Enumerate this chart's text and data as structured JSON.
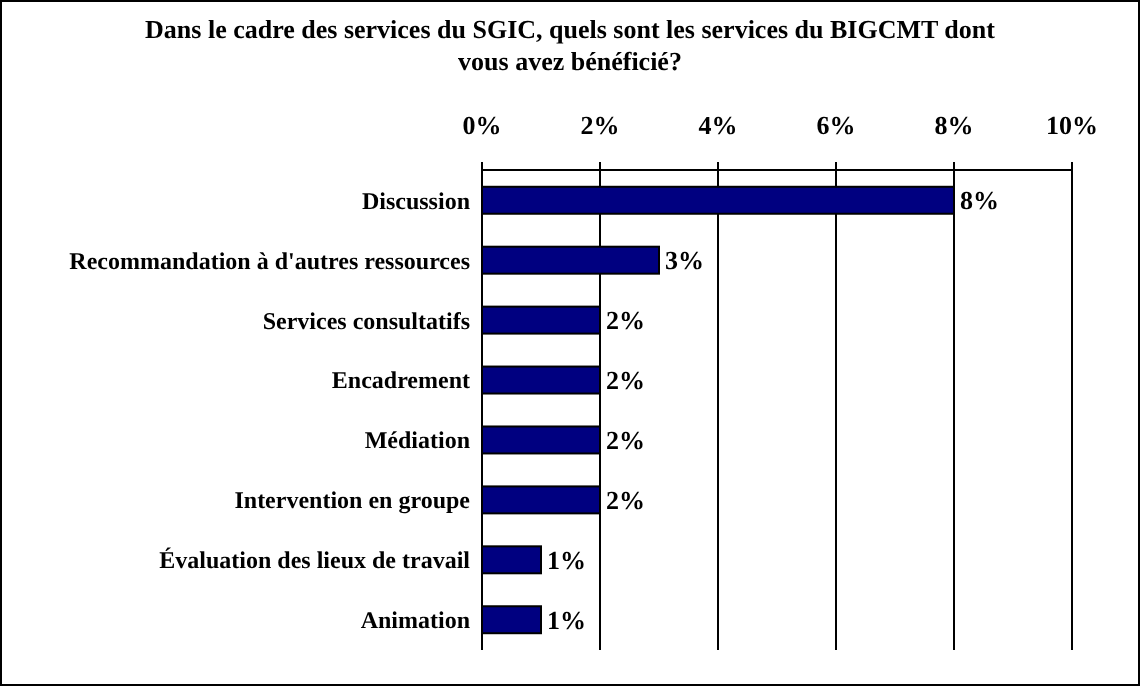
{
  "chart_data": {
    "type": "bar",
    "orientation": "horizontal",
    "title": "Dans le cadre des services du SGIC, quels sont les services du BIGCMT dont vous avez bénéficié?",
    "categories": [
      "Discussion",
      "Recommandation à d'autres ressources",
      "Services consultatifs",
      "Encadrement",
      "Médiation",
      "Intervention en groupe",
      "Évaluation des lieux de travail",
      "Animation"
    ],
    "values": [
      8,
      3,
      2,
      2,
      2,
      2,
      1,
      1
    ],
    "value_labels": [
      "8%",
      "3%",
      "2%",
      "2%",
      "2%",
      "2%",
      "1%",
      "1%"
    ],
    "color": "#000080",
    "xlim": [
      0,
      10
    ],
    "xticks": [
      {
        "value": 0,
        "label": "0%"
      },
      {
        "value": 2,
        "label": "2%"
      },
      {
        "value": 4,
        "label": "4%"
      },
      {
        "value": 6,
        "label": "6%"
      },
      {
        "value": 8,
        "label": "8%"
      },
      {
        "value": 10,
        "label": "10%"
      }
    ],
    "grid": "x"
  }
}
